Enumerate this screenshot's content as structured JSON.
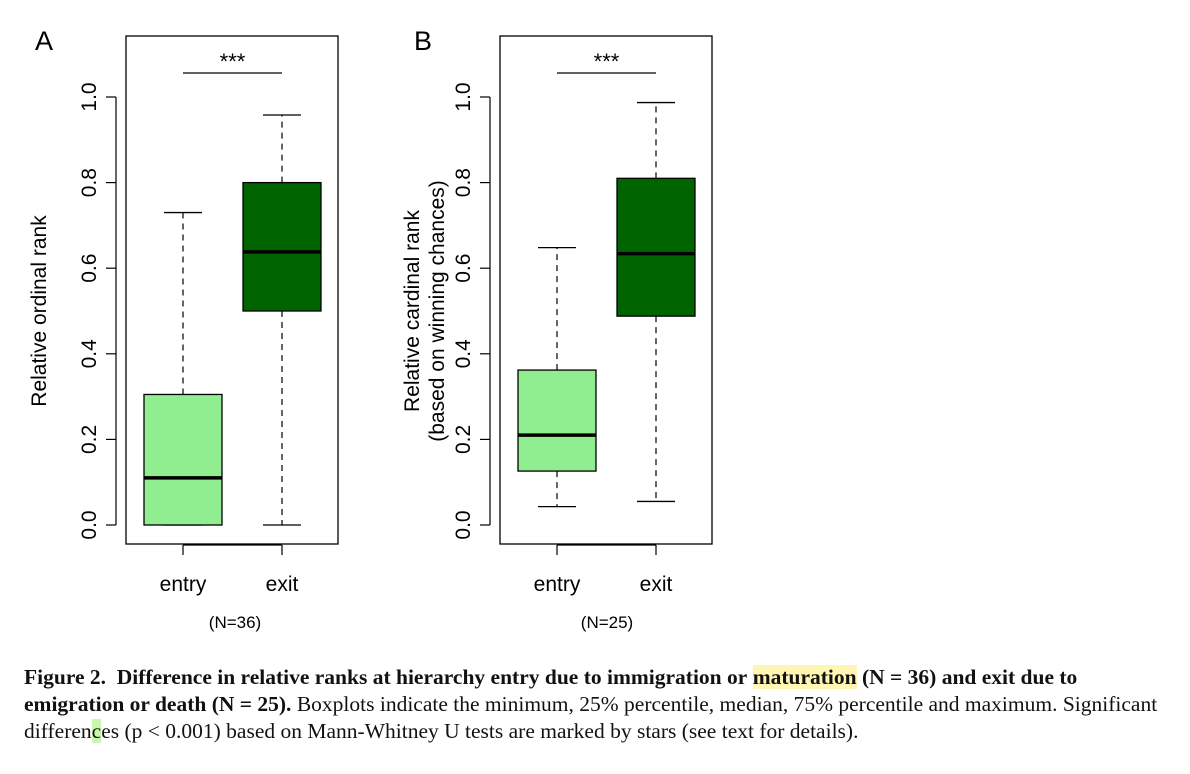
{
  "chart_data": [
    {
      "type": "boxplot",
      "panel_label": "A",
      "ylabel": "Relative ordinal rank",
      "ylim": [
        0,
        1.0
      ],
      "yticks": [
        "0.0",
        "0.2",
        "0.4",
        "0.6",
        "0.8",
        "1.0"
      ],
      "categories": [
        "entry",
        "exit"
      ],
      "n_label": "(N=36)",
      "significance": "***",
      "boxes": [
        {
          "category": "entry",
          "min": 0.0,
          "q1": 0.0,
          "median": 0.11,
          "q3": 0.305,
          "max": 0.73,
          "color": "#90ee90"
        },
        {
          "category": "exit",
          "min": 0.0,
          "q1": 0.5,
          "median": 0.638,
          "q3": 0.8,
          "max": 0.958,
          "color": "#006400"
        }
      ]
    },
    {
      "type": "boxplot",
      "panel_label": "B",
      "ylabel": "Relative cardinal rank",
      "ylabel2": "(based on winning chances)",
      "ylim": [
        0,
        1.0
      ],
      "yticks": [
        "0.0",
        "0.2",
        "0.4",
        "0.6",
        "0.8",
        "1.0"
      ],
      "categories": [
        "entry",
        "exit"
      ],
      "n_label": "(N=25)",
      "significance": "***",
      "boxes": [
        {
          "category": "entry",
          "min": 0.043,
          "q1": 0.126,
          "median": 0.21,
          "q3": 0.362,
          "max": 0.648,
          "color": "#90ee90"
        },
        {
          "category": "exit",
          "min": 0.055,
          "q1": 0.488,
          "median": 0.634,
          "q3": 0.81,
          "max": 0.987,
          "color": "#006400"
        }
      ]
    }
  ],
  "caption": {
    "label": "Figure 2.",
    "title_a": "Difference in relative ranks at hierarchy entry due to immigration or",
    "title_hl": "maturation",
    "title_b": "(N = 36) and exit due to emigration or death (N = 25).",
    "body_a": "Boxplots indicate the minimum, 25% percentile, median, 75% percentile and maximum. Significant differen",
    "body_hl": "c",
    "body_b": "es (p < 0.001) based on Mann-Whitney U tests are marked by stars (see text for details)."
  }
}
